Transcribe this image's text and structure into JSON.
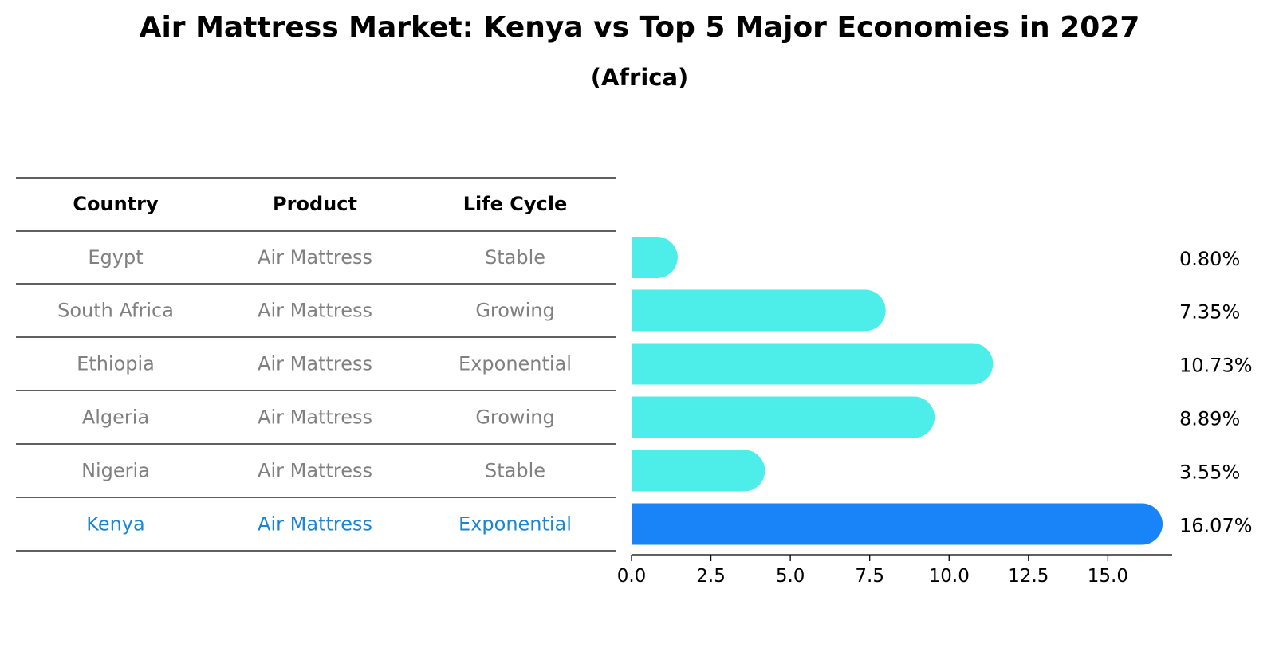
{
  "title": "Air Mattress Market: Kenya vs Top 5 Major Economies in 2027",
  "subtitle": "(Africa)",
  "table": {
    "headers": [
      "Country",
      "Product",
      "Life Cycle"
    ],
    "rows": [
      [
        "Egypt",
        "Air Mattress",
        "Stable"
      ],
      [
        "South Africa",
        "Air Mattress",
        "Growing"
      ],
      [
        "Ethiopia",
        "Air Mattress",
        "Exponential"
      ],
      [
        "Algeria",
        "Air Mattress",
        "Growing"
      ],
      [
        "Nigeria",
        "Air Mattress",
        "Stable"
      ],
      [
        "Kenya",
        "Air Mattress",
        "Exponential"
      ]
    ],
    "highlight_row": 5
  },
  "colors": {
    "bar": "#4DEEEA",
    "highlight_bar": "#1884F7",
    "muted_text": "#808080",
    "highlight_text": "#1A85D5"
  },
  "chart_data": {
    "type": "bar",
    "orientation": "horizontal",
    "categories": [
      "Egypt",
      "South Africa",
      "Ethiopia",
      "Algeria",
      "Nigeria",
      "Kenya"
    ],
    "values": [
      0.8,
      7.35,
      10.73,
      8.89,
      3.55,
      16.07
    ],
    "value_labels": [
      "0.80%",
      "7.35%",
      "10.73%",
      "8.89%",
      "3.55%",
      "16.07%"
    ],
    "xlim": [
      0,
      17
    ],
    "xticks": [
      0.0,
      2.5,
      5.0,
      7.5,
      10.0,
      12.5,
      15.0
    ],
    "xtick_labels": [
      "0.0",
      "2.5",
      "5.0",
      "7.5",
      "10.0",
      "12.5",
      "15.0"
    ],
    "highlight_category": "Kenya"
  }
}
